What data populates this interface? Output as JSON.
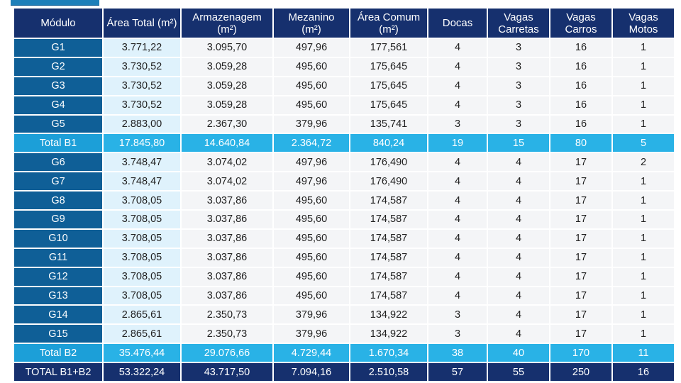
{
  "headers": [
    {
      "line1": "Módulo",
      "line2": ""
    },
    {
      "line1": "Área Total (m²)",
      "line2": ""
    },
    {
      "line1": "Armazenagem",
      "line2": "(m²)"
    },
    {
      "line1": "Mezanino",
      "line2": "(m²)"
    },
    {
      "line1": "Área Comum",
      "line2": "(m²)"
    },
    {
      "line1": "Docas",
      "line2": ""
    },
    {
      "line1": "Vagas",
      "line2": "Carretas"
    },
    {
      "line1": "Vagas",
      "line2": "Carros"
    },
    {
      "line1": "Vagas",
      "line2": "Motos"
    }
  ],
  "rows": [
    {
      "type": "module",
      "cells": [
        "G1",
        "3.771,22",
        "3.095,70",
        "497,96",
        "177,561",
        "4",
        "3",
        "16",
        "1"
      ]
    },
    {
      "type": "module",
      "cells": [
        "G2",
        "3.730,52",
        "3.059,28",
        "495,60",
        "175,645",
        "4",
        "3",
        "16",
        "1"
      ]
    },
    {
      "type": "module",
      "cells": [
        "G3",
        "3.730,52",
        "3.059,28",
        "495,60",
        "175,645",
        "4",
        "3",
        "16",
        "1"
      ]
    },
    {
      "type": "module",
      "cells": [
        "G4",
        "3.730,52",
        "3.059,28",
        "495,60",
        "175,645",
        "4",
        "3",
        "16",
        "1"
      ]
    },
    {
      "type": "module",
      "cells": [
        "G5",
        "2.883,00",
        "2.367,30",
        "379,96",
        "135,741",
        "3",
        "3",
        "16",
        "1"
      ]
    },
    {
      "type": "total",
      "cells": [
        "Total B1",
        "17.845,80",
        "14.640,84",
        "2.364,72",
        "840,24",
        "19",
        "15",
        "80",
        "5"
      ]
    },
    {
      "type": "module",
      "cells": [
        "G6",
        "3.748,47",
        "3.074,02",
        "497,96",
        "176,490",
        "4",
        "4",
        "17",
        "2"
      ]
    },
    {
      "type": "module",
      "cells": [
        "G7",
        "3.748,47",
        "3.074,02",
        "497,96",
        "176,490",
        "4",
        "4",
        "17",
        "1"
      ]
    },
    {
      "type": "module",
      "cells": [
        "G8",
        "3.708,05",
        "3.037,86",
        "495,60",
        "174,587",
        "4",
        "4",
        "17",
        "1"
      ]
    },
    {
      "type": "module",
      "cells": [
        "G9",
        "3.708,05",
        "3.037,86",
        "495,60",
        "174,587",
        "4",
        "4",
        "17",
        "1"
      ]
    },
    {
      "type": "module",
      "cells": [
        "G10",
        "3.708,05",
        "3.037,86",
        "495,60",
        "174,587",
        "4",
        "4",
        "17",
        "1"
      ]
    },
    {
      "type": "module",
      "cells": [
        "G11",
        "3.708,05",
        "3.037,86",
        "495,60",
        "174,587",
        "4",
        "4",
        "17",
        "1"
      ]
    },
    {
      "type": "module",
      "cells": [
        "G12",
        "3.708,05",
        "3.037,86",
        "495,60",
        "174,587",
        "4",
        "4",
        "17",
        "1"
      ]
    },
    {
      "type": "module",
      "cells": [
        "G13",
        "3.708,05",
        "3.037,86",
        "495,60",
        "174,587",
        "4",
        "4",
        "17",
        "1"
      ]
    },
    {
      "type": "module",
      "cells": [
        "G14",
        "2.865,61",
        "2.350,73",
        "379,96",
        "134,922",
        "3",
        "4",
        "17",
        "1"
      ]
    },
    {
      "type": "module",
      "cells": [
        "G15",
        "2.865,61",
        "2.350,73",
        "379,96",
        "134,922",
        "3",
        "4",
        "17",
        "1"
      ]
    },
    {
      "type": "total",
      "cells": [
        "Total B2",
        "35.476,44",
        "29.076,66",
        "4.729,44",
        "1.670,34",
        "38",
        "40",
        "170",
        "11"
      ]
    },
    {
      "type": "grand",
      "cells": [
        "TOTAL B1+B2",
        "53.322,24",
        "43.717,50",
        "7.094,16",
        "2.510,58",
        "57",
        "55",
        "250",
        "16"
      ]
    }
  ],
  "colors": {
    "header_bg": "#16306e",
    "module_bg": "#0f5f97",
    "total_area_bg": "#dff2fc",
    "cell_bg": "#f4f5f7",
    "subtotal_bg": "#29b2e6"
  }
}
